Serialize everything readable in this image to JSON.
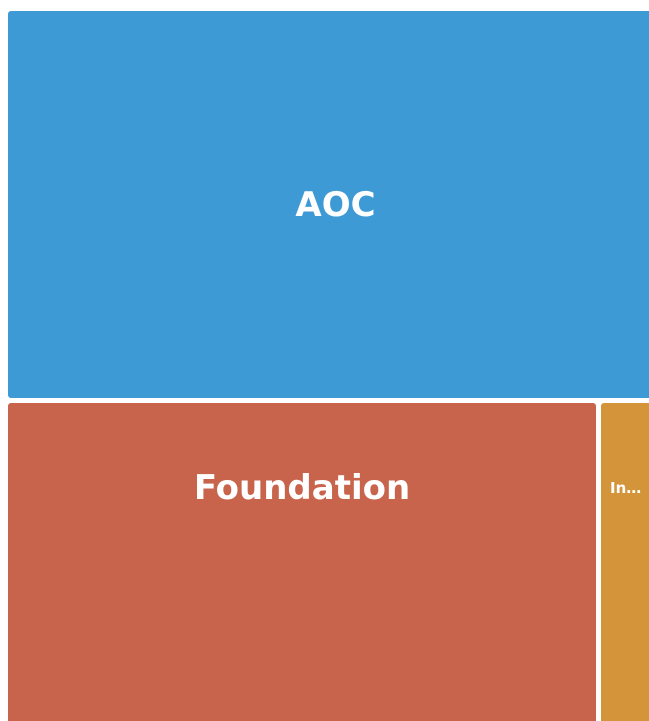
{
  "tiles": [
    {
      "label": "AOC"
    },
    {
      "label": "Foundation"
    },
    {
      "label": "In…"
    }
  ]
}
